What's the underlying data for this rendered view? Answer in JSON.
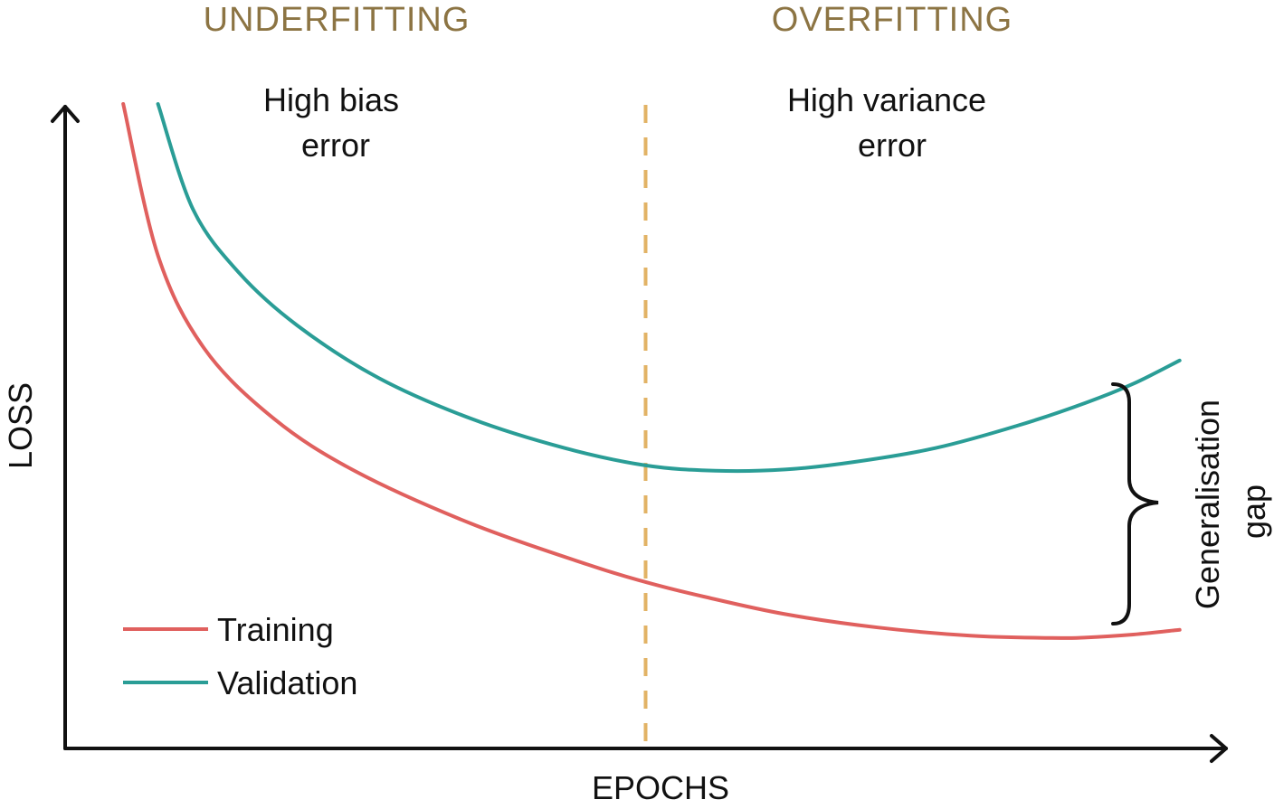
{
  "colors": {
    "training": "#e0605e",
    "validation": "#2a9d96",
    "region_label": "#8c7443",
    "divider": "#e2b366",
    "axis": "#111111"
  },
  "chart_data": {
    "type": "line",
    "xlabel": "EPOCHS",
    "ylabel": "LOSS",
    "xlim": [
      0,
      100
    ],
    "ylim": [
      0,
      100
    ],
    "grid": false,
    "legend_position": "bottom-left",
    "series": [
      {
        "name": "Training",
        "color_key": "training",
        "x": [
          5,
          8,
          12,
          18,
          25,
          35,
          45,
          50,
          55,
          62,
          70,
          78,
          85,
          88,
          92,
          96
        ],
        "y": [
          100,
          74,
          58,
          46,
          37,
          28,
          21,
          18,
          15.5,
          12.5,
          10.2,
          8.8,
          8.4,
          8.5,
          9.0,
          9.8
        ]
      },
      {
        "name": "Validation",
        "color_key": "validation",
        "x": [
          8,
          11,
          15,
          20,
          27,
          35,
          43,
          50,
          56,
          62,
          68,
          75,
          82,
          88,
          92,
          96
        ],
        "y": [
          100,
          82,
          71,
          62,
          53,
          46,
          41,
          38,
          37.1,
          37.3,
          38.6,
          41,
          44.8,
          48.8,
          52,
          56
        ]
      }
    ],
    "divider_x": 50,
    "regions": [
      {
        "label": "UNDERFITTING",
        "note_lines": [
          "High bias",
          "error"
        ]
      },
      {
        "label": "OVERFITTING",
        "note_lines": [
          "High variance",
          "error"
        ]
      }
    ],
    "annotation": {
      "label_lines": [
        "Generalisation",
        "gap"
      ]
    }
  }
}
